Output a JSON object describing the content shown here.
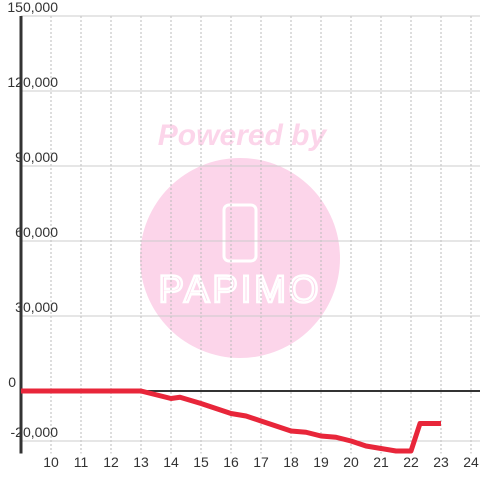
{
  "chart_data": {
    "type": "line",
    "watermark": {
      "top": "Powered by",
      "brand": "PAPIMO"
    },
    "x": [
      9,
      13,
      13.5,
      14,
      14.3,
      15,
      15.5,
      16,
      16.5,
      17,
      17.5,
      18,
      18.5,
      19,
      19.5,
      20,
      20.5,
      21,
      21.5,
      22,
      22.3,
      23
    ],
    "series": [
      {
        "color": "#e8263a",
        "values": [
          0,
          0,
          -1500,
          -3000,
          -2500,
          -5000,
          -7000,
          -9000,
          -10000,
          -12000,
          -14000,
          -16000,
          -16500,
          -18000,
          -18500,
          -20000,
          -22000,
          -23000,
          -24000,
          -24000,
          -13000,
          -13000
        ]
      }
    ],
    "xlim": [
      9,
      24.3
    ],
    "xticks": [
      10,
      11,
      12,
      13,
      14,
      15,
      16,
      17,
      18,
      19,
      20,
      21,
      22,
      23,
      24
    ],
    "ylim": [
      -25000,
      150000
    ],
    "yticks": [
      {
        "value": -20000,
        "label": "-20,000"
      },
      0,
      {
        "value": 30000,
        "label": "30,000"
      },
      {
        "value": 60000,
        "label": "60,000"
      },
      {
        "value": 90000,
        "label": "90,000"
      },
      {
        "value": 120000,
        "label": "120,000"
      },
      {
        "value": 150000,
        "label": "150,000"
      }
    ],
    "grid": true
  }
}
